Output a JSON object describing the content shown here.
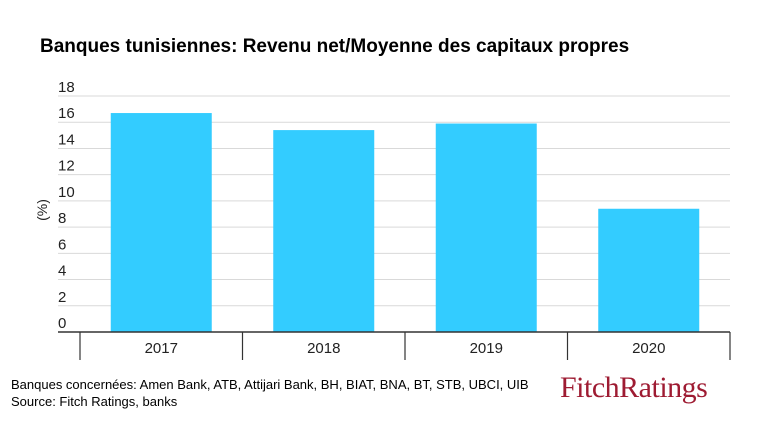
{
  "chart_data": {
    "type": "bar",
    "title": "Banques tunisiennes: Revenu net/Moyenne des capitaux propres",
    "ylabel": "(%)",
    "xlabel": "",
    "categories": [
      "2017",
      "2018",
      "2019",
      "2020"
    ],
    "values": [
      16.7,
      15.4,
      15.9,
      9.4
    ],
    "ylim": [
      0,
      18
    ],
    "yticks": [
      0,
      2,
      4,
      6,
      8,
      10,
      12,
      14,
      16,
      18
    ],
    "grid": true,
    "bar_color": "#33ccff",
    "grid_color": "#d9d9d9",
    "axis_color": "#333333"
  },
  "footnote": {
    "line1": "Banques concernées: Amen Bank, ATB, Attijari Bank, BH, BIAT, BNA, BT, STB, UBCI, UIB",
    "line2": "Source: Fitch Ratings, banks"
  },
  "logo": {
    "text": "FitchRatings",
    "color": "#9e1b32"
  }
}
